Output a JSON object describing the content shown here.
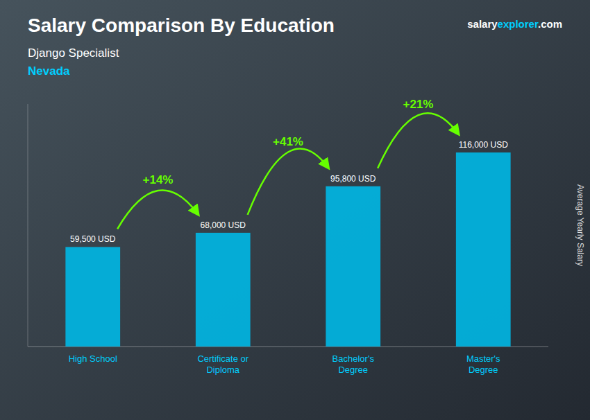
{
  "chart_data": {
    "type": "bar",
    "title": "Salary Comparison By Education",
    "subtitle": "Django Specialist",
    "location": "Nevada",
    "brand": [
      "salary",
      "explorer",
      ".com"
    ],
    "ylabel": "Average Yearly Salary",
    "categories": [
      "High School",
      "Certificate or\nDiploma",
      "Bachelor's\nDegree",
      "Master's\nDegree"
    ],
    "values": [
      59500,
      68000,
      95800,
      116000
    ],
    "value_labels": [
      "59,500 USD",
      "68,000 USD",
      "95,800 USD",
      "116,000 USD"
    ],
    "data_labels": true,
    "annotations": [
      "+14%",
      "+41%",
      "+21%"
    ],
    "color": "#00b8e6",
    "ylim": [
      0,
      145000
    ],
    "tick_labels": "x",
    "grid": false
  }
}
